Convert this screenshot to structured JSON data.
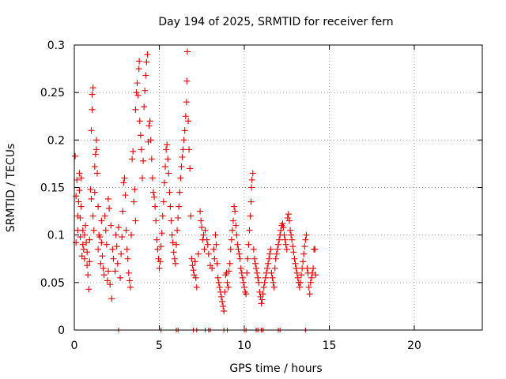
{
  "chart_data": {
    "type": "scatter",
    "title": "Day 194 of 2025, SRMTID for receiver fern",
    "xlabel": "GPS time / hours",
    "ylabel": "SRMTID / TECUs",
    "xlim": [
      0,
      24
    ],
    "ylim": [
      0,
      0.3
    ],
    "x_ticks": [
      0,
      5,
      10,
      15,
      20
    ],
    "x_tick_labels": [
      "0",
      "5",
      "10",
      "15",
      "20"
    ],
    "y_ticks": [
      0,
      0.05,
      0.1,
      0.15,
      0.2,
      0.25,
      0.3
    ],
    "y_tick_labels": [
      "0",
      "0.05",
      "0.1",
      "0.15",
      "0.2",
      "0.25",
      "0.3"
    ],
    "grid": true,
    "marker": "+",
    "marker_color": "#e00000",
    "series": [
      {
        "name": "SRMTID",
        "points": [
          [
            0.05,
            0.183
          ],
          [
            0.1,
            0.141
          ],
          [
            0.1,
            0.092
          ],
          [
            0.15,
            0.158
          ],
          [
            0.2,
            0.12
          ],
          [
            0.2,
            0.105
          ],
          [
            0.25,
            0.135
          ],
          [
            0.3,
            0.165
          ],
          [
            0.3,
            0.147
          ],
          [
            0.35,
            0.098
          ],
          [
            0.35,
            0.118
          ],
          [
            0.4,
            0.16
          ],
          [
            0.4,
            0.13
          ],
          [
            0.45,
            0.078
          ],
          [
            0.5,
            0.105
          ],
          [
            0.5,
            0.09
          ],
          [
            0.55,
            0.085
          ],
          [
            0.6,
            0.075
          ],
          [
            0.6,
            0.1
          ],
          [
            0.65,
            0.11
          ],
          [
            0.7,
            0.092
          ],
          [
            0.75,
            0.082
          ],
          [
            0.75,
            0.068
          ],
          [
            0.8,
            0.058
          ],
          [
            0.85,
            0.043
          ],
          [
            0.9,
            0.072
          ],
          [
            0.9,
            0.095
          ],
          [
            0.95,
            0.148
          ],
          [
            1.0,
            0.21
          ],
          [
            1.0,
            0.138
          ],
          [
            1.05,
            0.232
          ],
          [
            1.05,
            0.248
          ],
          [
            1.1,
            0.255
          ],
          [
            1.1,
            0.12
          ],
          [
            1.15,
            0.105
          ],
          [
            1.2,
            0.172
          ],
          [
            1.2,
            0.145
          ],
          [
            1.25,
            0.185
          ],
          [
            1.3,
            0.2
          ],
          [
            1.3,
            0.19
          ],
          [
            1.35,
            0.165
          ],
          [
            1.4,
            0.13
          ],
          [
            1.4,
            0.085
          ],
          [
            1.45,
            0.1
          ],
          [
            1.5,
            0.098
          ],
          [
            1.55,
            0.07
          ],
          [
            1.6,
            0.092
          ],
          [
            1.6,
            0.115
          ],
          [
            1.65,
            0.078
          ],
          [
            1.7,
            0.065
          ],
          [
            1.75,
            0.058
          ],
          [
            1.8,
            0.12
          ],
          [
            1.85,
            0.105
          ],
          [
            1.9,
            0.09
          ],
          [
            1.95,
            0.052
          ],
          [
            2.0,
            0.062
          ],
          [
            2.0,
            0.138
          ],
          [
            2.05,
            0.128
          ],
          [
            2.1,
            0.048
          ],
          [
            2.15,
            0.11
          ],
          [
            2.2,
            0.033
          ],
          [
            2.25,
            0.085
          ],
          [
            2.3,
            0.075
          ],
          [
            2.4,
            0.062
          ],
          [
            2.45,
            0.1
          ],
          [
            2.5,
            0.088
          ],
          [
            2.55,
            0.07
          ],
          [
            2.6,
            0.108
          ],
          [
            2.7,
            0.055
          ],
          [
            2.75,
            0.08
          ],
          [
            2.8,
            0.098
          ],
          [
            2.85,
            0.125
          ],
          [
            2.9,
            0.155
          ],
          [
            2.95,
            0.16
          ],
          [
            3.0,
            0.142
          ],
          [
            3.05,
            0.105
          ],
          [
            3.1,
            0.085
          ],
          [
            3.15,
            0.075
          ],
          [
            3.2,
            0.06
          ],
          [
            3.25,
            0.052
          ],
          [
            3.3,
            0.045
          ],
          [
            3.35,
            0.1
          ],
          [
            3.4,
            0.18
          ],
          [
            3.45,
            0.188
          ],
          [
            3.5,
            0.135
          ],
          [
            3.55,
            0.148
          ],
          [
            3.6,
            0.115
          ],
          [
            3.6,
            0.232
          ],
          [
            3.65,
            0.25
          ],
          [
            3.7,
            0.26
          ],
          [
            3.75,
            0.247
          ],
          [
            3.8,
            0.275
          ],
          [
            3.82,
            0.283
          ],
          [
            3.85,
            0.22
          ],
          [
            3.9,
            0.205
          ],
          [
            3.95,
            0.19
          ],
          [
            4.0,
            0.16
          ],
          [
            4.05,
            0.178
          ],
          [
            4.1,
            0.235
          ],
          [
            4.15,
            0.252
          ],
          [
            4.2,
            0.268
          ],
          [
            4.25,
            0.282
          ],
          [
            4.3,
            0.29
          ],
          [
            4.35,
            0.198
          ],
          [
            4.4,
            0.215
          ],
          [
            4.45,
            0.22
          ],
          [
            4.5,
            0.2
          ],
          [
            4.55,
            0.18
          ],
          [
            4.6,
            0.16
          ],
          [
            4.65,
            0.145
          ],
          [
            4.7,
            0.14
          ],
          [
            4.75,
            0.13
          ],
          [
            4.8,
            0.115
          ],
          [
            4.85,
            0.095
          ],
          [
            4.9,
            0.085
          ],
          [
            4.95,
            0.075
          ],
          [
            5.0,
            0.065
          ],
          [
            5.05,
            0.072
          ],
          [
            5.1,
            0.088
          ],
          [
            5.15,
            0.102
          ],
          [
            5.2,
            0.12
          ],
          [
            5.25,
            0.135
          ],
          [
            5.3,
            0.155
          ],
          [
            5.35,
            0.172
          ],
          [
            5.4,
            0.19
          ],
          [
            5.45,
            0.195
          ],
          [
            5.5,
            0.18
          ],
          [
            5.55,
            0.165
          ],
          [
            5.6,
            0.145
          ],
          [
            5.65,
            0.13
          ],
          [
            5.7,
            0.115
          ],
          [
            5.75,
            0.1
          ],
          [
            5.8,
            0.092
          ],
          [
            5.85,
            0.082
          ],
          [
            5.9,
            0.075
          ],
          [
            5.95,
            0.07
          ],
          [
            6.0,
            0.09
          ],
          [
            6.05,
            0.105
          ],
          [
            6.1,
            0.118
          ],
          [
            6.15,
            0.13
          ],
          [
            6.2,
            0.145
          ],
          [
            6.25,
            0.16
          ],
          [
            6.3,
            0.172
          ],
          [
            6.35,
            0.182
          ],
          [
            6.4,
            0.19
          ],
          [
            6.45,
            0.2
          ],
          [
            6.5,
            0.21
          ],
          [
            6.55,
            0.225
          ],
          [
            6.6,
            0.24
          ],
          [
            6.62,
            0.262
          ],
          [
            6.65,
            0.293
          ],
          [
            6.7,
            0.22
          ],
          [
            6.75,
            0.19
          ],
          [
            6.8,
            0.17
          ],
          [
            6.85,
            0.12
          ],
          [
            6.9,
            0.075
          ],
          [
            6.95,
            0.068
          ],
          [
            7.0,
            0.063
          ],
          [
            7.05,
            0.058
          ],
          [
            7.1,
            0.072
          ],
          [
            7.15,
            0.055
          ],
          [
            7.2,
            0.045
          ],
          [
            7.3,
            0.08
          ],
          [
            7.4,
            0.125
          ],
          [
            7.45,
            0.115
          ],
          [
            7.5,
            0.108
          ],
          [
            7.55,
            0.095
          ],
          [
            7.6,
            0.1
          ],
          [
            7.65,
            0.085
          ],
          [
            7.7,
            0.105
          ],
          [
            7.8,
            0.095
          ],
          [
            7.85,
            0.09
          ],
          [
            7.9,
            0.08
          ],
          [
            8.0,
            0.068
          ],
          [
            8.1,
            0.065
          ],
          [
            8.2,
            0.085
          ],
          [
            8.25,
            0.075
          ],
          [
            8.3,
            0.1
          ],
          [
            8.35,
            0.09
          ],
          [
            8.4,
            0.07
          ],
          [
            8.45,
            0.055
          ],
          [
            8.5,
            0.05
          ],
          [
            8.55,
            0.045
          ],
          [
            8.6,
            0.04
          ],
          [
            8.65,
            0.035
          ],
          [
            8.7,
            0.03
          ],
          [
            8.75,
            0.025
          ],
          [
            8.8,
            0.02
          ],
          [
            8.85,
            0.04
          ],
          [
            8.9,
            0.058
          ],
          [
            8.95,
            0.06
          ],
          [
            9.0,
            0.05
          ],
          [
            9.05,
            0.045
          ],
          [
            9.1,
            0.062
          ],
          [
            9.15,
            0.07
          ],
          [
            9.2,
            0.085
          ],
          [
            9.25,
            0.095
          ],
          [
            9.3,
            0.105
          ],
          [
            9.35,
            0.115
          ],
          [
            9.4,
            0.13
          ],
          [
            9.45,
            0.125
          ],
          [
            9.5,
            0.11
          ],
          [
            9.55,
            0.1
          ],
          [
            9.6,
            0.09
          ],
          [
            9.65,
            0.085
          ],
          [
            9.7,
            0.08
          ],
          [
            9.75,
            0.075
          ],
          [
            9.8,
            0.065
          ],
          [
            9.85,
            0.06
          ],
          [
            9.9,
            0.055
          ],
          [
            9.95,
            0.05
          ],
          [
            10.0,
            0.045
          ],
          [
            10.05,
            0.04
          ],
          [
            10.1,
            0.038
          ],
          [
            10.15,
            0.06
          ],
          [
            10.2,
            0.075
          ],
          [
            10.25,
            0.09
          ],
          [
            10.3,
            0.105
          ],
          [
            10.35,
            0.12
          ],
          [
            10.4,
            0.135
          ],
          [
            10.42,
            0.15
          ],
          [
            10.45,
            0.158
          ],
          [
            10.5,
            0.165
          ],
          [
            10.55,
            0.085
          ],
          [
            10.6,
            0.075
          ],
          [
            10.65,
            0.07
          ],
          [
            10.7,
            0.065
          ],
          [
            10.75,
            0.06
          ],
          [
            10.8,
            0.055
          ],
          [
            10.85,
            0.05
          ],
          [
            10.9,
            0.04
          ],
          [
            10.95,
            0.035
          ],
          [
            11.0,
            0.028
          ],
          [
            11.05,
            0.032
          ],
          [
            11.1,
            0.038
          ],
          [
            11.15,
            0.045
          ],
          [
            11.2,
            0.05
          ],
          [
            11.25,
            0.055
          ],
          [
            11.3,
            0.06
          ],
          [
            11.35,
            0.065
          ],
          [
            11.4,
            0.07
          ],
          [
            11.45,
            0.075
          ],
          [
            11.5,
            0.08
          ],
          [
            11.55,
            0.085
          ],
          [
            11.6,
            0.06
          ],
          [
            11.65,
            0.055
          ],
          [
            11.7,
            0.05
          ],
          [
            11.75,
            0.045
          ],
          [
            11.8,
            0.065
          ],
          [
            11.85,
            0.075
          ],
          [
            11.9,
            0.08
          ],
          [
            11.95,
            0.085
          ],
          [
            12.0,
            0.09
          ],
          [
            12.05,
            0.095
          ],
          [
            12.1,
            0.1
          ],
          [
            12.15,
            0.105
          ],
          [
            12.2,
            0.11
          ],
          [
            12.25,
            0.112
          ],
          [
            12.3,
            0.108
          ],
          [
            12.35,
            0.1
          ],
          [
            12.4,
            0.095
          ],
          [
            12.45,
            0.09
          ],
          [
            12.5,
            0.085
          ],
          [
            12.55,
            0.118
          ],
          [
            12.6,
            0.122
          ],
          [
            12.65,
            0.115
          ],
          [
            12.7,
            0.105
          ],
          [
            12.75,
            0.1
          ],
          [
            12.8,
            0.095
          ],
          [
            12.85,
            0.088
          ],
          [
            12.9,
            0.082
          ],
          [
            12.95,
            0.075
          ],
          [
            13.0,
            0.07
          ],
          [
            13.05,
            0.065
          ],
          [
            13.1,
            0.06
          ],
          [
            13.15,
            0.055
          ],
          [
            13.2,
            0.05
          ],
          [
            13.25,
            0.045
          ],
          [
            13.3,
            0.05
          ],
          [
            13.35,
            0.058
          ],
          [
            13.4,
            0.065
          ],
          [
            13.45,
            0.072
          ],
          [
            13.5,
            0.08
          ],
          [
            13.55,
            0.088
          ],
          [
            13.6,
            0.095
          ],
          [
            13.65,
            0.1
          ],
          [
            13.7,
            0.065
          ],
          [
            13.75,
            0.06
          ],
          [
            13.8,
            0.045
          ],
          [
            13.85,
            0.038
          ],
          [
            13.9,
            0.05
          ],
          [
            13.95,
            0.055
          ],
          [
            14.0,
            0.06
          ],
          [
            14.05,
            0.065
          ],
          [
            14.1,
            0.085
          ],
          [
            14.15,
            0.085
          ],
          [
            14.2,
            0.058
          ]
        ]
      }
    ],
    "zero_points_x": [
      2.6,
      5.1,
      6.0,
      6.1,
      7.0,
      7.2,
      7.7,
      7.9,
      8.0,
      8.8,
      9.0,
      10.0,
      10.1,
      10.7,
      10.8,
      11.0,
      11.1,
      12.0,
      12.1,
      13.6
    ]
  }
}
